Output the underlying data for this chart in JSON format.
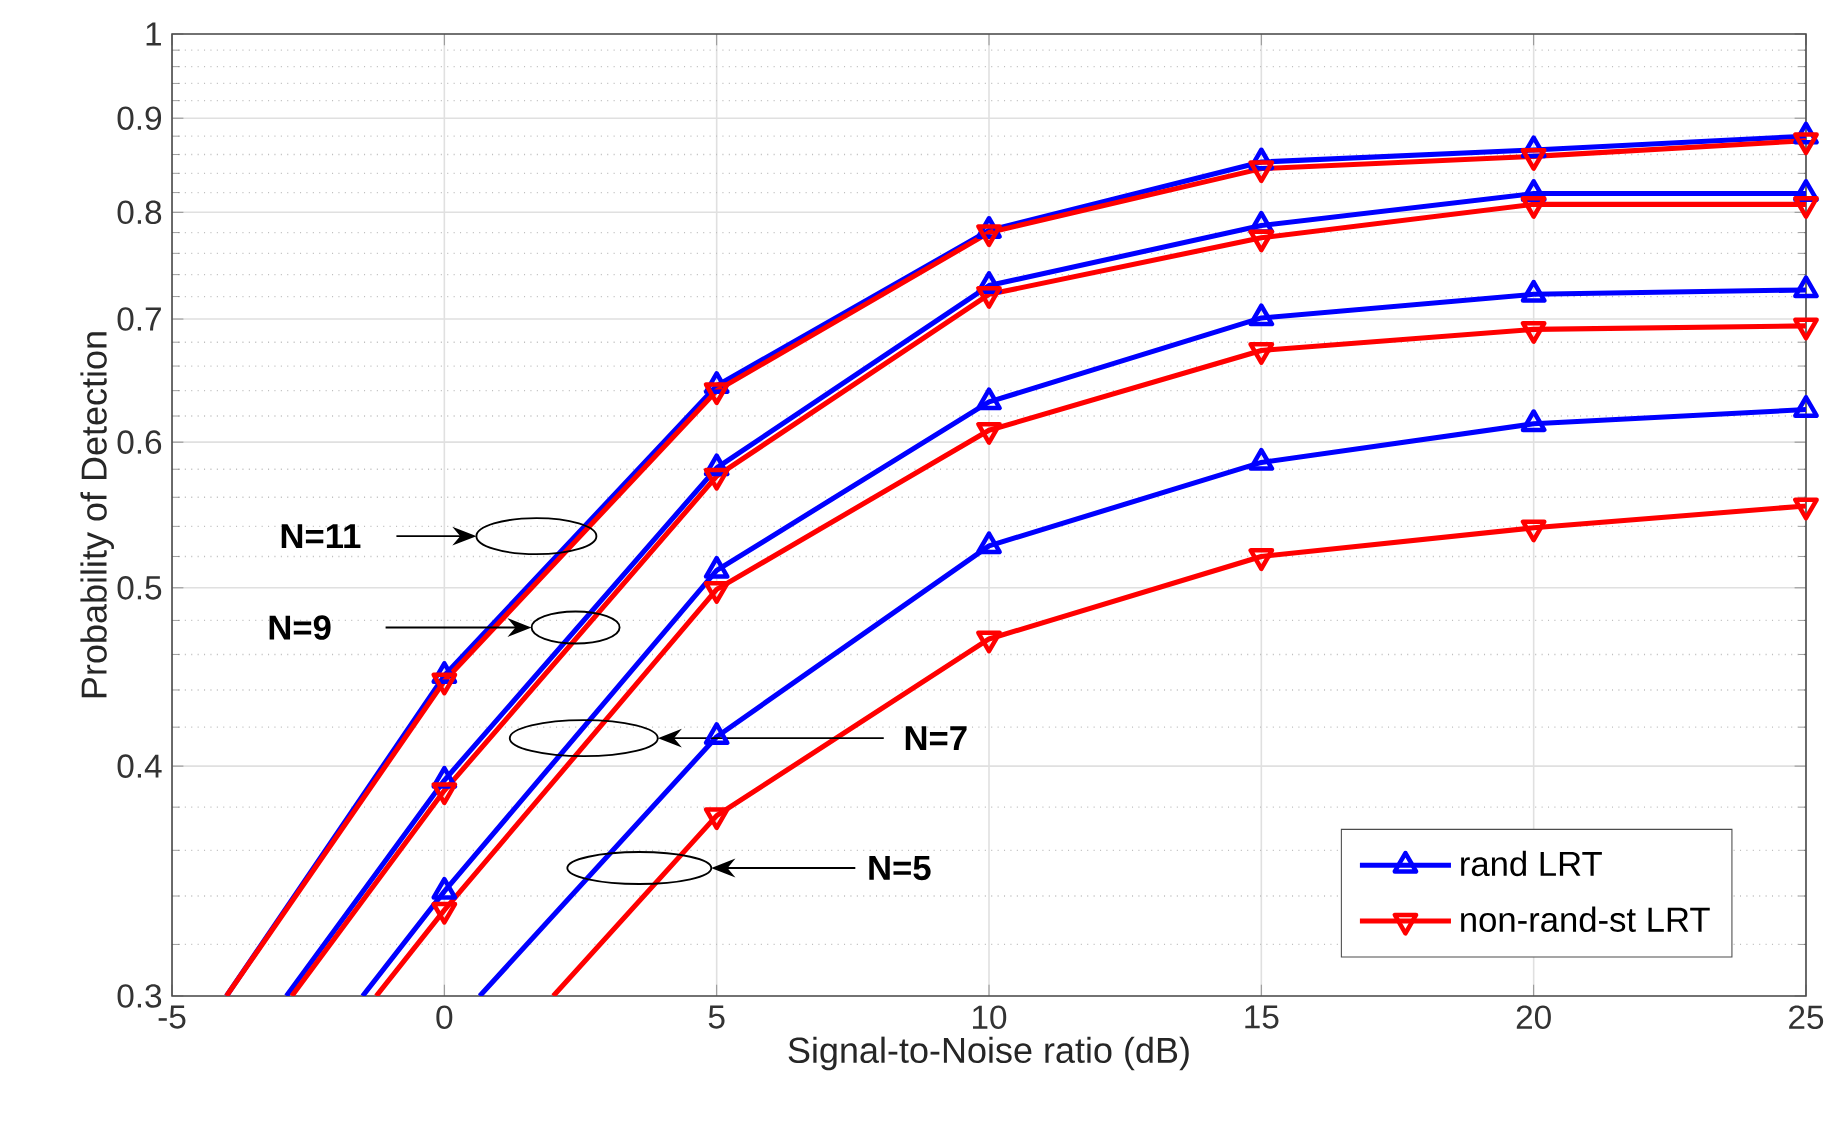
{
  "chart_data": {
    "type": "line",
    "xlabel": "Signal-to-Noise ratio (dB)",
    "ylabel": "Probability of Detection",
    "xlim": [
      -5,
      25
    ],
    "ylim": [
      0.3,
      1
    ],
    "xticks": [
      -5,
      0,
      5,
      10,
      15,
      20,
      25
    ],
    "yticks": [
      0.3,
      0.4,
      0.5,
      0.6,
      0.7,
      0.8,
      0.9,
      1
    ],
    "log": "y",
    "grid": true,
    "legend": "bottom right",
    "line_style": "solid",
    "series": [
      {
        "name": "rand LRT",
        "color": "#0000ff",
        "marker": "triangle",
        "x": [
          -4.0,
          0,
          5,
          10,
          15,
          20,
          25
        ],
        "values": [
          0.3,
          0.448,
          0.644,
          0.782,
          0.852,
          0.865,
          0.88
        ]
      },
      {
        "name": "non-rand-st LRT",
        "color": "#ff0000",
        "marker": "triangle down",
        "x": [
          -4.0,
          0,
          5,
          10,
          15,
          20,
          25
        ],
        "values": [
          0.3,
          0.445,
          0.64,
          0.78,
          0.845,
          0.858,
          0.875
        ]
      },
      {
        "color": "#0000ff",
        "marker": "triangle",
        "x": [
          -2.9,
          0,
          5,
          10,
          15,
          20,
          25
        ],
        "values": [
          0.3,
          0.393,
          0.581,
          0.73,
          0.787,
          0.819,
          0.819
        ]
      },
      {
        "color": "#ff0000",
        "marker": "triangle down",
        "x": [
          -2.8,
          0,
          5,
          10,
          15,
          20,
          25
        ],
        "values": [
          0.3,
          0.388,
          0.575,
          0.722,
          0.775,
          0.808,
          0.808
        ]
      },
      {
        "color": "#0000ff",
        "marker": "triangle",
        "x": [
          -1.5,
          0,
          5,
          10,
          15,
          20,
          25
        ],
        "values": [
          0.3,
          0.342,
          0.511,
          0.631,
          0.701,
          0.722,
          0.726
        ]
      },
      {
        "color": "#ff0000",
        "marker": "triangle down",
        "x": [
          -1.25,
          0,
          5,
          10,
          15,
          20,
          25
        ],
        "values": [
          0.3,
          0.334,
          0.499,
          0.609,
          0.673,
          0.691,
          0.694
        ]
      },
      {
        "color": "#0000ff",
        "marker": "triangle",
        "x": [
          0.65,
          5,
          10,
          15,
          20,
          25
        ],
        "values": [
          0.3,
          0.415,
          0.527,
          0.585,
          0.614,
          0.625
        ]
      },
      {
        "color": "#ff0000",
        "marker": "triangle down",
        "x": [
          2.0,
          5,
          10,
          15,
          20,
          25
        ],
        "values": [
          0.3,
          0.376,
          0.469,
          0.52,
          0.539,
          0.554
        ]
      }
    ],
    "annotations": [
      "N=11",
      "N=9",
      "N=7",
      "N=5"
    ]
  }
}
